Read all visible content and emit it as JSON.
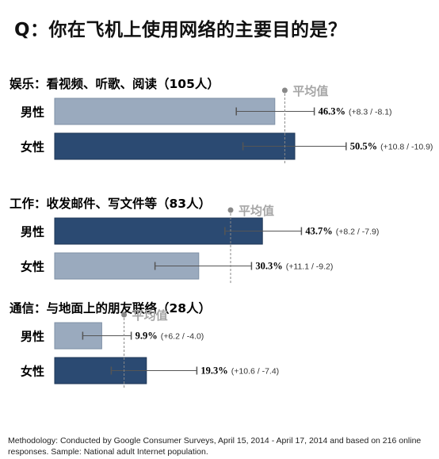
{
  "title": "Q：你在飞机上使用网络的主要目的是？",
  "methodology": "Methodology: Conducted by Google Consumer Surveys, April 15, 2014 - April 17, 2014 and based on 216 online responses. Sample: National adult Internet population.",
  "chart_data": {
    "type": "bar",
    "orientation": "horizontal",
    "average_label": "平均值",
    "colors": {
      "light": "#9aaabe",
      "dark": "#2b4a72",
      "light_border": "#7f90a6",
      "dark_border": "#1e3656",
      "average_marker": "#888888"
    },
    "groups": [
      {
        "title": "娱乐：看视频、听歌、阅读（105人）",
        "average": 48.4,
        "bars": [
          {
            "label": "男性",
            "value": 46.3,
            "value_text": "46.3%",
            "plus": 8.3,
            "minus": 8.1,
            "moe_text": "(+8.3 / -8.1)",
            "color": "light"
          },
          {
            "label": "女性",
            "value": 50.5,
            "value_text": "50.5%",
            "plus": 10.8,
            "minus": 10.9,
            "moe_text": "(+10.8 / -10.9)",
            "color": "dark"
          }
        ]
      },
      {
        "title": "工作：收发邮件、写文件等（83人）",
        "average": 37.0,
        "bars": [
          {
            "label": "男性",
            "value": 43.7,
            "value_text": "43.7%",
            "plus": 8.2,
            "minus": 7.9,
            "moe_text": "(+8.2 / -7.9)",
            "color": "dark"
          },
          {
            "label": "女性",
            "value": 30.3,
            "value_text": "30.3%",
            "plus": 11.1,
            "minus": 9.2,
            "moe_text": "(+11.1 / -9.2)",
            "color": "light"
          }
        ]
      },
      {
        "title": "通信：与地面上的朋友联络（28人）",
        "average": 14.6,
        "bars": [
          {
            "label": "男性",
            "value": 9.9,
            "value_text": "9.9%",
            "plus": 6.2,
            "minus": 4.0,
            "moe_text": "(+6.2 / -4.0)",
            "color": "light"
          },
          {
            "label": "女性",
            "value": 19.3,
            "value_text": "19.3%",
            "plus": 10.6,
            "minus": 7.4,
            "moe_text": "(+10.6 / -7.4)",
            "color": "dark"
          }
        ]
      }
    ]
  }
}
